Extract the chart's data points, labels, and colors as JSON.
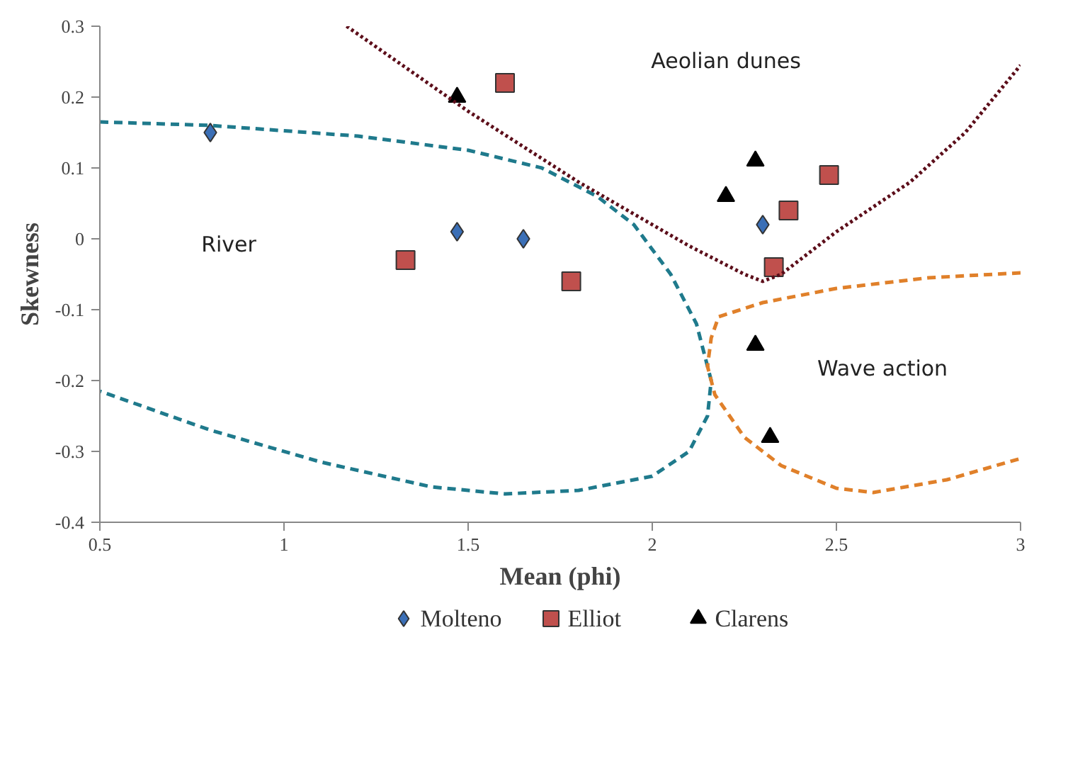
{
  "chart_data": {
    "type": "scatter",
    "xlabel": "Mean (phi)",
    "ylabel": "Skewness",
    "xlim": [
      0.5,
      3
    ],
    "ylim": [
      -0.4,
      0.3
    ],
    "xticks": [
      0.5,
      1,
      1.5,
      2,
      2.5,
      3
    ],
    "yticks": [
      -0.4,
      -0.3,
      -0.2,
      -0.1,
      0,
      0.1,
      0.2,
      0.3
    ],
    "grid": false,
    "legend": "bottom",
    "annotations": [
      "Aeolian dunes",
      "River",
      "Wave action"
    ],
    "series": [
      {
        "name": "Molteno",
        "marker": "diamond",
        "color": "#3b6fb6",
        "x": [
          0.8,
          1.47,
          1.65,
          2.3
        ],
        "values": [
          0.15,
          0.01,
          0.0,
          0.02
        ]
      },
      {
        "name": "Elliot",
        "marker": "square",
        "color": "#c0504d",
        "x": [
          1.33,
          1.6,
          1.78,
          2.33,
          2.37,
          2.48
        ],
        "values": [
          -0.03,
          0.22,
          -0.06,
          -0.04,
          0.04,
          0.09
        ]
      },
      {
        "name": "Clarens",
        "marker": "triangle",
        "color": "#000000",
        "x": [
          1.47,
          2.2,
          2.28,
          2.28,
          2.32
        ],
        "values": [
          0.2,
          0.06,
          0.11,
          -0.15,
          -0.28
        ]
      },
      {
        "type": "line",
        "line_style": "dashed",
        "color": "#1f7a8c",
        "x": [
          0.5,
          0.8,
          1.2,
          1.5,
          1.7,
          1.85,
          1.95,
          2.05,
          2.12,
          2.16,
          2.15,
          2.1,
          2.0,
          1.8,
          1.6,
          1.4,
          1.1,
          0.8,
          0.5
        ],
        "values": [
          0.165,
          0.16,
          0.145,
          0.125,
          0.1,
          0.06,
          0.02,
          -0.05,
          -0.12,
          -0.2,
          -0.25,
          -0.3,
          -0.335,
          -0.355,
          -0.36,
          -0.35,
          -0.315,
          -0.27,
          -0.215
        ]
      },
      {
        "type": "line",
        "line_style": "dotted",
        "color": "#5c0e1a",
        "x": [
          1.17,
          1.5,
          1.8,
          2.1,
          2.25,
          2.3,
          2.35,
          2.5,
          2.7,
          2.85,
          3.0
        ],
        "values": [
          0.3,
          0.18,
          0.08,
          -0.01,
          -0.05,
          -0.06,
          -0.05,
          0.01,
          0.08,
          0.15,
          0.245
        ]
      },
      {
        "type": "line",
        "line_style": "dashed",
        "color": "#e0802a",
        "x": [
          3.0,
          2.75,
          2.5,
          2.3,
          2.18,
          2.16,
          2.15,
          2.17,
          2.25,
          2.35,
          2.5,
          2.6,
          2.8,
          3.0
        ],
        "values": [
          -0.048,
          -0.055,
          -0.07,
          -0.09,
          -0.11,
          -0.14,
          -0.18,
          -0.22,
          -0.28,
          -0.32,
          -0.352,
          -0.358,
          -0.34,
          -0.31
        ]
      }
    ]
  }
}
